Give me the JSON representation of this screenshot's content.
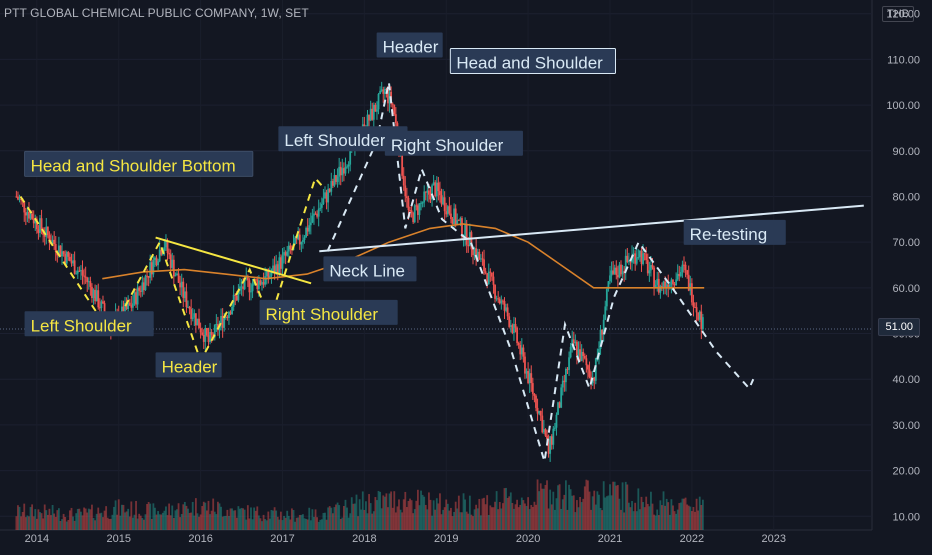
{
  "header": {
    "title": "PTT GLOBAL CHEMICAL PUBLIC COMPANY, 1W, SET",
    "currency": "THB"
  },
  "last_price_label": "51.00",
  "colors": {
    "background": "#131722",
    "up": "#26a69a",
    "down": "#ef5350",
    "ma": "#d9822b",
    "pattern_bottom": "#f5e642",
    "pattern_top": "#d9e9f5",
    "label_bg": "#2a3a55"
  },
  "chart_data": {
    "type": "line",
    "x": [
      2013.75,
      2014.1,
      2014.6,
      2014.9,
      2015.15,
      2015.55,
      2015.8,
      2016.1,
      2016.5,
      2016.8,
      2017.2,
      2017.6,
      2017.9,
      2018.25,
      2018.35,
      2018.55,
      2018.85,
      2019.3,
      2019.8,
      2020.15,
      2020.25,
      2020.55,
      2020.8,
      2021.0,
      2021.35,
      2021.6,
      2021.9,
      2022.15
    ],
    "series": [
      {
        "values": [
          80,
          72,
          62,
          52,
          56,
          70,
          58,
          48,
          60,
          62,
          70,
          82,
          92,
          103,
          100,
          75,
          82,
          70,
          52,
          32,
          24,
          48,
          40,
          62,
          68,
          60,
          64,
          51
        ]
      }
    ],
    "moving_average": {
      "x": [
        2014.8,
        2015.3,
        2015.8,
        2016.3,
        2016.8,
        2017.3,
        2017.8,
        2018.3,
        2018.8,
        2019.2,
        2019.6,
        2020.0,
        2020.4,
        2020.8,
        2021.2,
        2021.6,
        2022.0,
        2022.15
      ],
      "values": [
        62,
        63.5,
        64,
        63,
        62,
        63,
        66,
        70,
        73,
        74,
        73,
        70,
        65,
        60,
        60,
        60,
        60,
        60
      ]
    },
    "x_ticks": [
      "2014",
      "2015",
      "2016",
      "2017",
      "2018",
      "2019",
      "2020",
      "2021",
      "2022",
      "2023"
    ],
    "y_ticks": [
      "10.00",
      "20.00",
      "30.00",
      "40.00",
      "50.00",
      "60.00",
      "70.00",
      "80.00",
      "90.00",
      "100.00",
      "110.00",
      "120.00"
    ],
    "ylim": [
      7,
      123
    ],
    "xlim": [
      2013.55,
      2024.2
    ],
    "title": "PTT GLOBAL CHEMICAL PUBLIC COMPANY, 1W, SET",
    "annotations": [
      {
        "text": "Head and Shoulder Bottom",
        "style": "yellow"
      },
      {
        "text": "Left Shoulder",
        "style": "yellow"
      },
      {
        "text": "Header",
        "style": "yellow"
      },
      {
        "text": "Right Shoulder",
        "style": "yellow"
      },
      {
        "text": "Header",
        "style": "white"
      },
      {
        "text": "Head and Shoulder",
        "style": "white"
      },
      {
        "text": "Left Shoulder",
        "style": "white"
      },
      {
        "text": "Right Shoulder",
        "style": "white"
      },
      {
        "text": "Neck Line",
        "style": "white"
      },
      {
        "text": "Re-testing",
        "style": "white"
      }
    ],
    "pattern_bottom_path": {
      "x": [
        2013.8,
        2014.9,
        2015.5,
        2016.0,
        2016.6,
        2016.85,
        2017.4,
        2017.5
      ],
      "values": [
        80,
        50,
        70,
        44,
        64,
        53,
        84,
        82
      ]
    },
    "pattern_bottom_neckline": {
      "x": [
        2015.45,
        2017.35
      ],
      "values": [
        71,
        61
      ]
    },
    "pattern_top_path": {
      "x": [
        2017.55,
        2018.15,
        2018.3,
        2018.5,
        2018.7,
        2018.95,
        2019.3,
        2019.8,
        2020.2,
        2020.45,
        2020.75,
        2021.05,
        2021.35,
        2021.8,
        2022.3,
        2022.7,
        2022.75
      ],
      "values": [
        68,
        92,
        105,
        73,
        86,
        75,
        70,
        46,
        22,
        52,
        38,
        58,
        70,
        59,
        46,
        38,
        40
      ]
    },
    "pattern_top_neckline": {
      "x": [
        2017.45,
        2024.1
      ],
      "values": [
        68,
        78
      ]
    },
    "volume": {
      "x": [
        2014.0,
        2014.5,
        2015.0,
        2015.5,
        2016.0,
        2016.5,
        2017.0,
        2017.5,
        2018.0,
        2018.5,
        2019.0,
        2019.5,
        2020.0,
        2020.25,
        2020.5,
        2021.0,
        2021.5,
        2022.0,
        2022.15
      ],
      "values": [
        6,
        5,
        7,
        6,
        8,
        6,
        5,
        5,
        9,
        10,
        8,
        9,
        10,
        13,
        11,
        12,
        9,
        8,
        11
      ]
    }
  },
  "labels": {
    "hsb_title": "Head and Shoulder Bottom",
    "yl_left": "Left Shoulder",
    "yl_header": "Header",
    "yl_right": "Right Shoulder",
    "wl_header": "Header",
    "wl_title": "Head and Shoulder",
    "wl_left": "Left Shoulder",
    "wl_right": "Right Shoulder",
    "wl_neck": "Neck Line",
    "wl_retest": "Re-testing"
  }
}
